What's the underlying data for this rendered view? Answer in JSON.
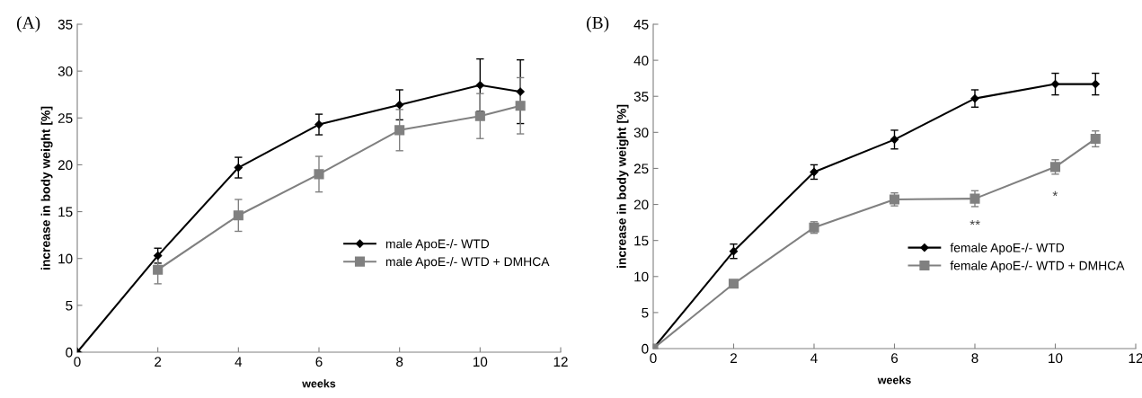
{
  "chart_data": [
    {
      "type": "line",
      "title": "(A)",
      "xlabel": "weeks",
      "ylabel": "increase in body weight [%]",
      "x": [
        0,
        2,
        4,
        6,
        8,
        10,
        11
      ],
      "xlim": [
        0,
        12
      ],
      "xticks": [
        0,
        2,
        4,
        6,
        8,
        10,
        12
      ],
      "ylim": [
        0,
        35
      ],
      "yticks": [
        0,
        5,
        10,
        15,
        20,
        25,
        30,
        35
      ],
      "grid": false,
      "legend": "right",
      "series": [
        {
          "name": "male ApoE-/- WTD",
          "color": "#000000",
          "marker": "diamond",
          "values": [
            0,
            10.3,
            19.7,
            24.3,
            26.4,
            28.5,
            27.8
          ],
          "errors": [
            null,
            0.8,
            1.1,
            1.1,
            1.6,
            2.8,
            3.4
          ]
        },
        {
          "name": "male ApoE-/- WTD + DMHCA",
          "color": "#808080",
          "marker": "square",
          "values": [
            null,
            8.8,
            14.6,
            19.0,
            23.7,
            25.2,
            26.3
          ],
          "errors": [
            null,
            1.5,
            1.7,
            1.9,
            2.2,
            2.4,
            3.0
          ]
        }
      ]
    },
    {
      "type": "line",
      "title": "(B)",
      "xlabel": "weeks",
      "ylabel": "increase in body weight [%]",
      "x": [
        0,
        2,
        4,
        6,
        8,
        10,
        11
      ],
      "xlim": [
        0,
        12
      ],
      "xticks": [
        0,
        2,
        4,
        6,
        8,
        10,
        12
      ],
      "ylim": [
        0,
        45
      ],
      "yticks": [
        0,
        5,
        10,
        15,
        20,
        25,
        30,
        35,
        40,
        45
      ],
      "grid": false,
      "legend": "bottom right",
      "annotations": [
        "**",
        "*"
      ],
      "series": [
        {
          "name": "female ApoE-/- WTD",
          "color": "#000000",
          "marker": "diamond",
          "values": [
            0,
            13.5,
            24.5,
            29.0,
            34.7,
            36.7,
            36.7
          ],
          "errors": [
            null,
            1.0,
            1.0,
            1.3,
            1.2,
            1.5,
            1.5
          ]
        },
        {
          "name": "female ApoE-/- WTD + DMHCA",
          "color": "#808080",
          "marker": "square",
          "values": [
            0,
            9.0,
            16.8,
            20.7,
            20.8,
            25.2,
            29.1
          ],
          "errors": [
            null,
            0.5,
            0.8,
            0.9,
            1.1,
            1.0,
            1.1
          ]
        }
      ]
    }
  ]
}
